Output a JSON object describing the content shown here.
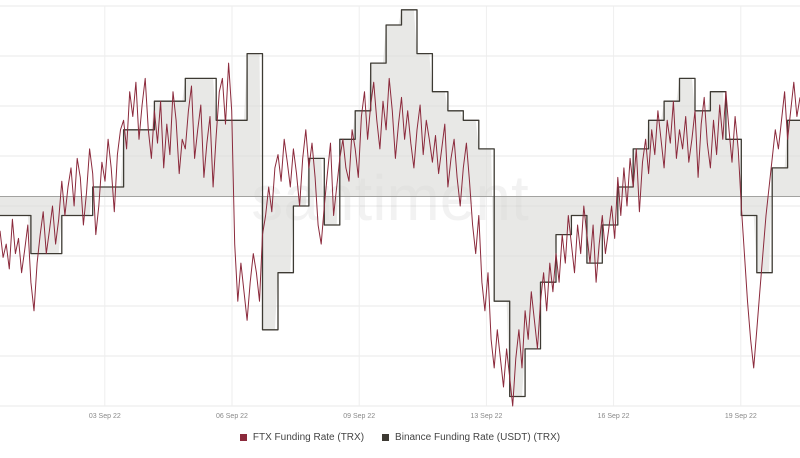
{
  "chart_data": {
    "type": "line",
    "watermark": "santiment",
    "x_ticks": [
      "03 Sep 22",
      "06 Sep 22",
      "09 Sep 22",
      "13 Sep 22",
      "16 Sep 22",
      "19 Sep 22"
    ],
    "grid": true,
    "legend_position": "bottom",
    "series": [
      {
        "name": "FTX Funding Rate (TRX)",
        "color": "#8b2a3c",
        "values": [
          -18,
          -32,
          -25,
          -38,
          -12,
          -30,
          -22,
          -40,
          -28,
          -15,
          -45,
          -60,
          -35,
          -20,
          -8,
          -30,
          -18,
          -5,
          -25,
          -12,
          8,
          -10,
          5,
          15,
          -5,
          20,
          10,
          -15,
          2,
          25,
          12,
          -20,
          -5,
          18,
          8,
          30,
          15,
          -8,
          22,
          35,
          40,
          25,
          55,
          42,
          60,
          30,
          48,
          62,
          35,
          20,
          45,
          28,
          50,
          15,
          38,
          22,
          55,
          40,
          12,
          30,
          25,
          45,
          58,
          20,
          35,
          48,
          10,
          28,
          42,
          5,
          32,
          55,
          62,
          38,
          70,
          45,
          -25,
          -55,
          -35,
          -50,
          -65,
          -45,
          -30,
          -40,
          -55,
          -20,
          -10,
          5,
          -8,
          15,
          22,
          8,
          30,
          18,
          5,
          25,
          12,
          -5,
          20,
          35,
          15,
          28,
          10,
          -15,
          -25,
          -5,
          12,
          28,
          -10,
          5,
          20,
          30,
          15,
          8,
          35,
          25,
          10,
          42,
          55,
          30,
          48,
          60,
          40,
          25,
          50,
          35,
          62,
          45,
          20,
          38,
          52,
          30,
          45,
          28,
          15,
          35,
          48,
          22,
          40,
          30,
          18,
          32,
          12,
          25,
          38,
          5,
          20,
          30,
          10,
          -5,
          15,
          28,
          8,
          -15,
          -30,
          -10,
          -45,
          -60,
          -40,
          -75,
          -90,
          -70,
          -85,
          -100,
          -80,
          -95,
          -110,
          -85,
          -70,
          -90,
          -60,
          -75,
          -50,
          -65,
          -80,
          -55,
          -40,
          -60,
          -35,
          -50,
          -30,
          -45,
          -20,
          -35,
          -10,
          -25,
          -40,
          -15,
          -30,
          -5,
          -20,
          -35,
          -15,
          -45,
          -25,
          -10,
          -30,
          -18,
          -5,
          -22,
          10,
          -10,
          15,
          -5,
          20,
          5,
          25,
          -8,
          18,
          30,
          12,
          35,
          22,
          45,
          30,
          15,
          40,
          28,
          50,
          20,
          35,
          25,
          42,
          18,
          30,
          45,
          10,
          38,
          52,
          28,
          15,
          40,
          22,
          48,
          30,
          55,
          35,
          18,
          42,
          25,
          -5,
          -30,
          -55,
          -75,
          -90,
          -70,
          -50,
          -30,
          -10,
          5,
          20,
          35,
          25,
          40,
          55,
          30,
          45,
          60,
          42,
          52
        ]
      },
      {
        "name": "Binance Funding Rate (USDT) (TRX)",
        "color": "#3d3a33",
        "values": [
          -10,
          -10,
          -10,
          -10,
          -10,
          -10,
          -10,
          -10,
          -10,
          -10,
          -30,
          -30,
          -30,
          -30,
          -30,
          -30,
          -30,
          -30,
          -30,
          -30,
          -10,
          -10,
          -10,
          -10,
          -10,
          -10,
          -10,
          -10,
          -10,
          -10,
          5,
          5,
          5,
          5,
          5,
          5,
          5,
          5,
          5,
          5,
          35,
          35,
          35,
          35,
          35,
          35,
          35,
          35,
          35,
          35,
          50,
          50,
          50,
          50,
          50,
          50,
          50,
          50,
          50,
          50,
          62,
          62,
          62,
          62,
          62,
          62,
          62,
          62,
          62,
          62,
          40,
          40,
          40,
          40,
          40,
          40,
          40,
          40,
          40,
          40,
          75,
          75,
          75,
          75,
          75,
          -70,
          -70,
          -70,
          -70,
          -70,
          -40,
          -40,
          -40,
          -40,
          -40,
          -5,
          -5,
          -5,
          -5,
          -5,
          20,
          20,
          20,
          20,
          20,
          -15,
          -15,
          -15,
          -15,
          -15,
          30,
          30,
          30,
          30,
          30,
          45,
          45,
          45,
          45,
          45,
          70,
          70,
          70,
          70,
          70,
          90,
          90,
          90,
          90,
          90,
          98,
          98,
          98,
          98,
          98,
          75,
          75,
          75,
          75,
          75,
          55,
          55,
          55,
          55,
          55,
          45,
          45,
          45,
          45,
          45,
          40,
          40,
          40,
          40,
          40,
          25,
          25,
          25,
          25,
          25,
          -55,
          -55,
          -55,
          -55,
          -55,
          -105,
          -105,
          -105,
          -105,
          -105,
          -80,
          -80,
          -80,
          -80,
          -80,
          -45,
          -45,
          -45,
          -45,
          -45,
          -20,
          -20,
          -20,
          -20,
          -20,
          -10,
          -10,
          -10,
          -10,
          -10,
          -35,
          -35,
          -35,
          -35,
          -35,
          -15,
          -15,
          -15,
          -15,
          -15,
          5,
          5,
          5,
          5,
          5,
          25,
          25,
          25,
          25,
          25,
          40,
          40,
          40,
          40,
          40,
          50,
          50,
          50,
          50,
          50,
          62,
          62,
          62,
          62,
          62,
          45,
          45,
          45,
          45,
          45,
          55,
          55,
          55,
          55,
          55,
          30,
          30,
          30,
          30,
          30,
          -10,
          -10,
          -10,
          -10,
          -10,
          -40,
          -40,
          -40,
          -40,
          -40,
          15,
          15,
          15,
          15,
          15,
          40,
          40,
          40,
          40,
          40
        ]
      }
    ]
  }
}
